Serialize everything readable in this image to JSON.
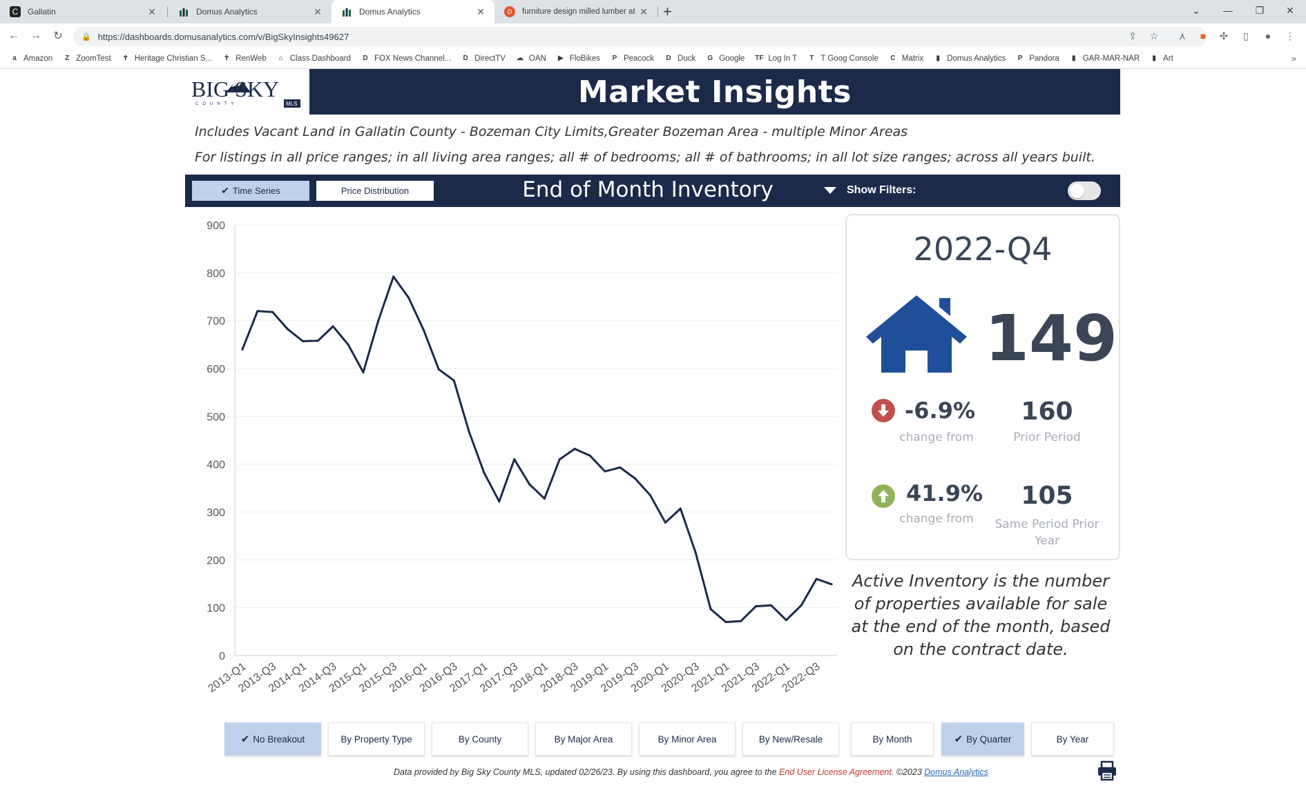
{
  "browser": {
    "tabs": [
      {
        "title": "Gallatin",
        "icon": "c-icon"
      },
      {
        "title": "Domus Analytics",
        "icon": "bars-icon"
      },
      {
        "title": "Domus Analytics",
        "icon": "bars-icon"
      },
      {
        "title": "furniture design milled lumber at",
        "icon": "duckduckgo-icon"
      }
    ],
    "url": "https://dashboards.domusanalytics.com/v/BigSkyInsights49627",
    "bookmarks": [
      "Amazon",
      "ZoomTest",
      "Heritage Christian S...",
      "RenWeb",
      "Class Dashboard",
      "FOX News Channel...",
      "DirectTV",
      "OAN",
      "FloBikes",
      "Peacock",
      "Duck",
      "Google",
      "Log In T",
      "T Goog Console",
      "Matrix",
      "Domus Analytics",
      "Pandora",
      "GAR-MAR-NAR",
      "Art"
    ]
  },
  "header": {
    "logo_text": "BIG SKY",
    "logo_sub": "COUNTY",
    "logo_badge": "MLS",
    "title": "Market Insights"
  },
  "filters": {
    "line1": "Includes Vacant Land in Gallatin County - Bozeman City Limits,Greater Bozeman Area - multiple Minor Areas",
    "line2": "For listings in all price ranges; in all living area ranges; all # of bedrooms; all # of bathrooms; in all lot size ranges; across all years built."
  },
  "controls": {
    "time_series": "Time Series",
    "price_distribution": "Price Distribution",
    "metric": "End of Month Inventory",
    "show_filters": "Show Filters:"
  },
  "chart_data": {
    "type": "line",
    "ylim": [
      0,
      900
    ],
    "yticks": [
      0,
      100,
      200,
      300,
      400,
      500,
      600,
      700,
      800,
      900
    ],
    "xticks": [
      "2013-Q1",
      "2013-Q3",
      "2014-Q1",
      "2014-Q3",
      "2015-Q1",
      "2015-Q3",
      "2016-Q1",
      "2016-Q3",
      "2017-Q1",
      "2017-Q3",
      "2018-Q1",
      "2018-Q3",
      "2019-Q1",
      "2019-Q3",
      "2020-Q1",
      "2020-Q3",
      "2021-Q1",
      "2021-Q3",
      "2022-Q1",
      "2022-Q3"
    ],
    "line_color": "#1c2a4a",
    "series": [
      {
        "values": [
          640,
          720,
          718,
          682,
          657,
          658,
          688,
          650,
          592,
          700,
          792,
          748,
          680,
          598,
          575,
          468,
          382,
          322,
          410,
          358,
          328,
          410,
          432,
          418,
          385,
          393,
          370,
          335,
          278,
          307,
          215,
          97,
          70,
          72,
          103,
          105,
          74,
          105,
          160,
          149
        ]
      }
    ]
  },
  "card": {
    "period": "2022-Q4",
    "value": "149",
    "change1_pct": "-6.9%",
    "change1_label": "change from",
    "prior_value": "160",
    "prior_label": "Prior Period",
    "change2_pct": "41.9%",
    "change2_label": "change from",
    "prior_year_value": "105",
    "prior_year_label_1": "Same Period Prior",
    "prior_year_label_2": "Year",
    "down_color": "#c0504d",
    "up_color": "#8fb35a",
    "house_color": "#1f4e9a"
  },
  "description": "Active Inventory is the number of properties available for sale at the end of the month, based on the contract date.",
  "breakdowns": [
    "No Breakout",
    "By Property Type",
    "By County",
    "By Major Area",
    "By Minor Area",
    "By New/Resale",
    "By Month",
    "By Quarter",
    "By Year"
  ],
  "footer": {
    "text1": "Data provided by Big Sky County MLS, updated 02/26/23.  By using this dashboard, you agree to the ",
    "eula": "End User License Agreement",
    "text2": ".  ©2023 ",
    "brand": "Domus Analytics"
  }
}
